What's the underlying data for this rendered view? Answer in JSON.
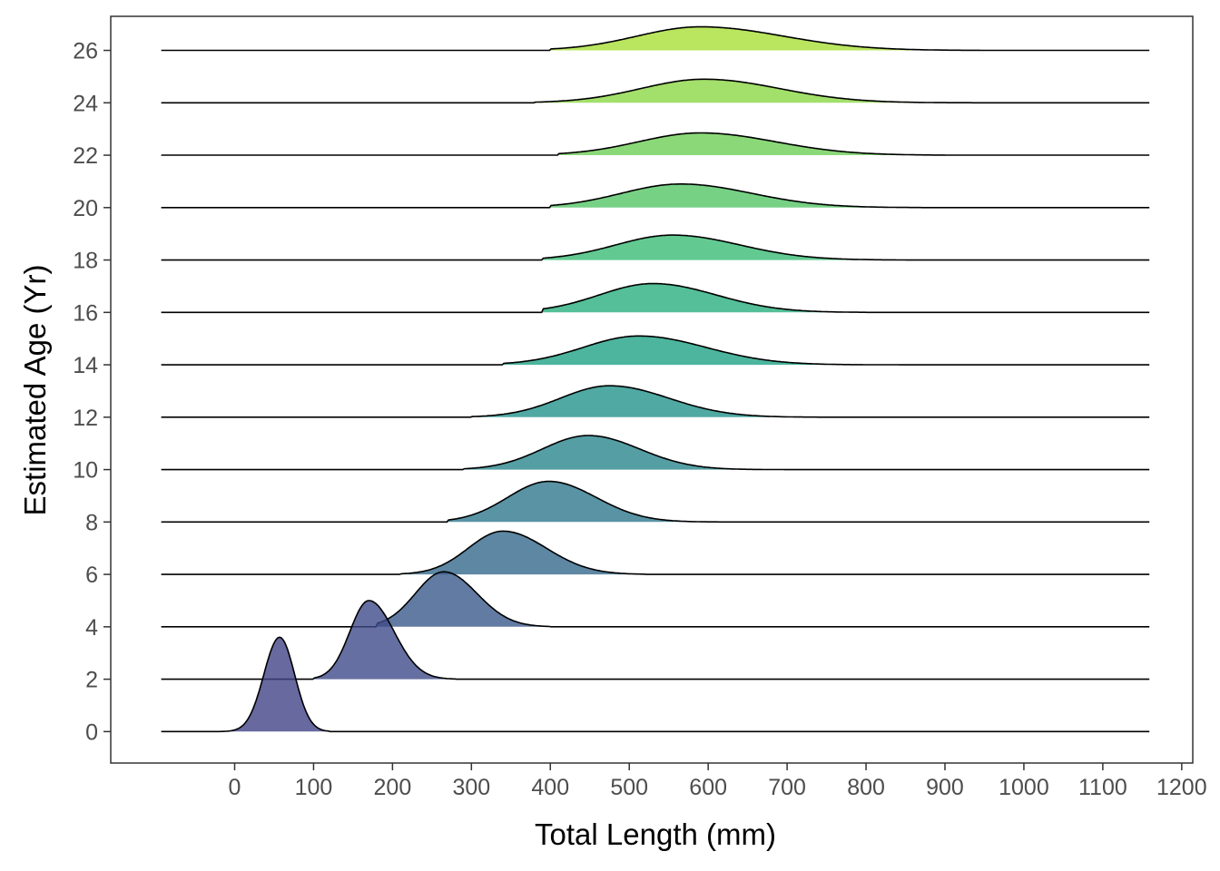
{
  "chart_data": {
    "type": "ridgeline",
    "title": "",
    "xlabel": "Total Length (mm)",
    "ylabel": "Estimated Age (Yr)",
    "xlim": [
      -157,
      1214
    ],
    "ylim": [
      -1.2,
      27.3
    ],
    "x_ticks": [
      "0",
      "100",
      "200",
      "300",
      "400",
      "500",
      "600",
      "700",
      "800",
      "900",
      "1000",
      "1100",
      "1200"
    ],
    "x_tick_values": [
      0,
      100,
      200,
      300,
      400,
      500,
      600,
      700,
      800,
      900,
      1000,
      1100,
      1200
    ],
    "y_ticks": [
      "0",
      "2",
      "4",
      "6",
      "8",
      "10",
      "12",
      "14",
      "16",
      "18",
      "20",
      "22",
      "24",
      "26"
    ],
    "y_tick_values": [
      0,
      2,
      4,
      6,
      8,
      10,
      12,
      14,
      16,
      18,
      20,
      22,
      24,
      26
    ],
    "baseline_range": [
      -93,
      1160
    ],
    "grid": false,
    "legend": "none",
    "fill_opacity": 0.8,
    "series": [
      {
        "age": 0,
        "mode": 57,
        "peak_height": 3.6,
        "sd_left": 20,
        "sd_right": 19,
        "support": [
          -50,
          120
        ],
        "color": "#414487"
      },
      {
        "age": 2,
        "mode": 170,
        "peak_height": 3.0,
        "sd_left": 24,
        "sd_right": 32,
        "support": [
          100,
          280
        ],
        "color": "#404b8a"
      },
      {
        "age": 4,
        "mode": 265,
        "peak_height": 2.1,
        "sd_left": 36,
        "sd_right": 42,
        "support": [
          180,
          400
        ],
        "color": "#3b5a8b"
      },
      {
        "age": 6,
        "mode": 340,
        "peak_height": 1.65,
        "sd_left": 44,
        "sd_right": 55,
        "support": [
          210,
          520
        ],
        "color": "#35698c"
      },
      {
        "age": 8,
        "mode": 398,
        "peak_height": 1.55,
        "sd_left": 52,
        "sd_right": 60,
        "support": [
          270,
          640
        ],
        "color": "#2f788d"
      },
      {
        "age": 10,
        "mode": 448,
        "peak_height": 1.3,
        "sd_left": 58,
        "sd_right": 65,
        "support": [
          290,
          750
        ],
        "color": "#2a868d"
      },
      {
        "age": 12,
        "mode": 475,
        "peak_height": 1.2,
        "sd_left": 62,
        "sd_right": 75,
        "support": [
          300,
          920
        ],
        "color": "#24948c"
      },
      {
        "age": 14,
        "mode": 512,
        "peak_height": 1.1,
        "sd_left": 70,
        "sd_right": 85,
        "support": [
          340,
          1050
        ],
        "color": "#20a386"
      },
      {
        "age": 16,
        "mode": 530,
        "peak_height": 1.1,
        "sd_left": 68,
        "sd_right": 80,
        "support": [
          390,
          800
        ],
        "color": "#29af7f"
      },
      {
        "age": 18,
        "mode": 555,
        "peak_height": 0.95,
        "sd_left": 72,
        "sd_right": 85,
        "support": [
          390,
          850
        ],
        "color": "#3bbb75"
      },
      {
        "age": 20,
        "mode": 565,
        "peak_height": 0.9,
        "sd_left": 75,
        "sd_right": 90,
        "support": [
          400,
          870
        ],
        "color": "#55c667"
      },
      {
        "age": 22,
        "mode": 590,
        "peak_height": 0.85,
        "sd_left": 78,
        "sd_right": 95,
        "support": [
          410,
          900
        ],
        "color": "#6ece58"
      },
      {
        "age": 24,
        "mode": 595,
        "peak_height": 0.9,
        "sd_left": 80,
        "sd_right": 95,
        "support": [
          380,
          950
        ],
        "color": "#8cd746"
      },
      {
        "age": 26,
        "mode": 590,
        "peak_height": 0.9,
        "sd_left": 80,
        "sd_right": 105,
        "support": [
          400,
          1020
        ],
        "color": "#a7df37"
      }
    ]
  }
}
